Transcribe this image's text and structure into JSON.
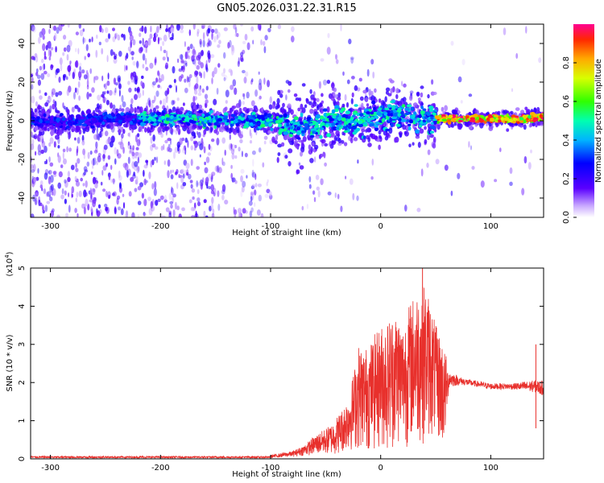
{
  "colors": {
    "snr_line": "#e8302c",
    "axis": "#000000",
    "background": "#ffffff"
  },
  "chart_data": [
    {
      "id": "spectrogram",
      "type": "heatmap",
      "title": "GN05.2026.031.22.31.R15",
      "xlabel": "Height of straight line (km)",
      "ylabel": "Frequency (Hz)",
      "xlim": [
        -318,
        148
      ],
      "ylim": [
        -50,
        50
      ],
      "xticks": [
        -300,
        -200,
        -100,
        0,
        100
      ],
      "xtick_labels": [
        "-300",
        "-200",
        "-100",
        "0",
        "100"
      ],
      "yticks": [
        -40,
        -20,
        0,
        20,
        40
      ],
      "ytick_labels": [
        "-40",
        "-20",
        "0",
        "20",
        "40"
      ],
      "colorbar": {
        "label": "Normalized spectral amplitude",
        "range": [
          0,
          1
        ],
        "ticks": [
          0.0,
          0.2,
          0.4,
          0.6,
          0.8
        ],
        "tick_labels": [
          "0.0",
          "0.2",
          "0.4",
          "0.6",
          "0.8"
        ],
        "colormap": "rainbow"
      },
      "ridge": {
        "description": "dominant frequency track",
        "x": [
          -318,
          -290,
          -250,
          -215,
          -200,
          -170,
          -150,
          -130,
          -110,
          -90,
          -78,
          -65,
          -55,
          -45,
          -30,
          -10,
          0,
          15,
          30,
          45,
          50,
          80,
          110,
          130,
          148
        ],
        "y": [
          0,
          -1,
          1,
          1,
          1,
          1,
          0,
          0,
          0,
          -1,
          -4,
          -2,
          -4,
          -1,
          0,
          2,
          3,
          3,
          2,
          1,
          1,
          1,
          1,
          1,
          2
        ]
      }
    },
    {
      "id": "snr",
      "type": "line",
      "title": "",
      "xlabel": "Height of straight line (km)",
      "ylabel": "SNR (10 * v/v)",
      "y_multiplier": "(x10",
      "y_multiplier_exp": "4",
      "y_multiplier_close": ")",
      "xlim": [
        -318,
        148
      ],
      "ylim": [
        0,
        5
      ],
      "xticks": [
        -300,
        -200,
        -100,
        0,
        100
      ],
      "xtick_labels": [
        "-300",
        "-200",
        "-100",
        "0",
        "100"
      ],
      "yticks": [
        0,
        1,
        2,
        3,
        4,
        5
      ],
      "ytick_labels": [
        "0",
        "1",
        "2",
        "3",
        "4",
        "5"
      ],
      "envelope": {
        "x": [
          -318,
          -200,
          -120,
          -100,
          -80,
          -70,
          -60,
          -50,
          -45,
          -40,
          -35,
          -30,
          -25,
          -20,
          -15,
          -10,
          -5,
          0,
          5,
          10,
          15,
          20,
          25,
          30,
          35,
          40,
          45,
          50,
          55,
          58,
          62,
          70,
          80,
          100,
          120,
          140,
          148
        ],
        "upper": [
          0.05,
          0.06,
          0.06,
          0.1,
          0.2,
          0.35,
          0.6,
          0.8,
          0.9,
          1.1,
          1.3,
          1.6,
          2.2,
          3.0,
          2.9,
          3.0,
          3.3,
          3.5,
          3.6,
          3.8,
          3.9,
          3.5,
          4.0,
          4.3,
          4.5,
          4.6,
          4.2,
          3.5,
          3.2,
          2.9,
          2.4,
          2.2,
          2.1,
          2.0,
          2.0,
          2.1,
          2.1
        ],
        "lower": [
          0.0,
          0.0,
          0.0,
          0.02,
          0.05,
          0.08,
          0.1,
          0.1,
          0.1,
          0.1,
          0.15,
          0.2,
          0.2,
          0.2,
          0.2,
          0.2,
          0.2,
          0.2,
          0.2,
          0.2,
          0.3,
          0.3,
          0.3,
          0.4,
          0.4,
          0.4,
          0.5,
          0.5,
          0.3,
          0.2,
          1.8,
          1.9,
          1.9,
          1.8,
          1.8,
          1.7,
          1.6
        ]
      },
      "peaks": [
        {
          "x": 38,
          "y": 5.0
        },
        {
          "x": 141,
          "y": 3.0
        }
      ]
    }
  ]
}
